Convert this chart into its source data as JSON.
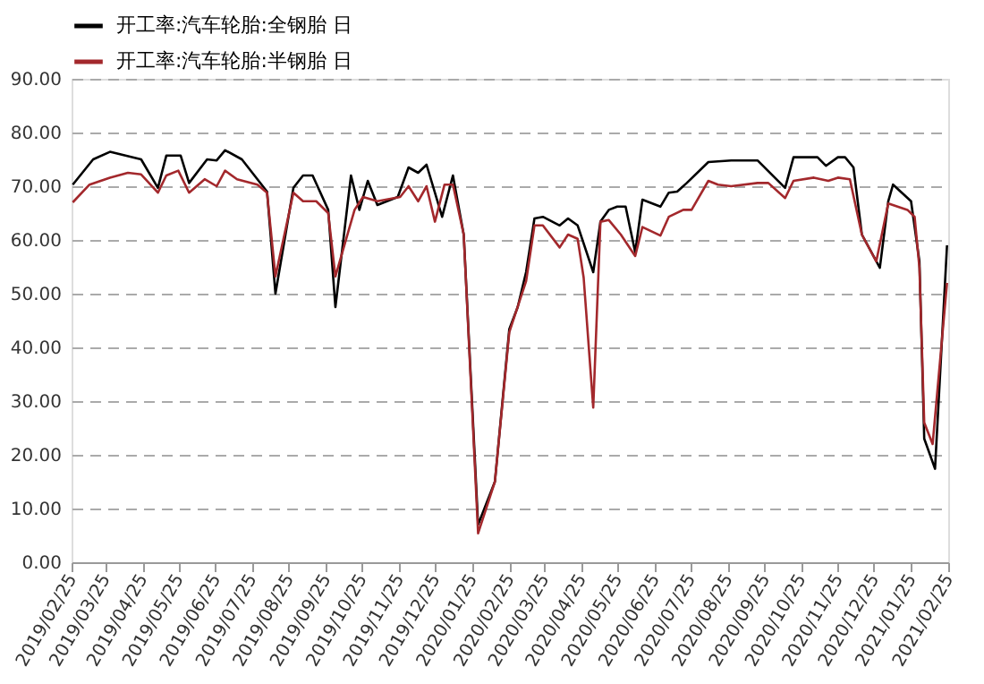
{
  "chart_data": {
    "type": "line",
    "legend": "top",
    "grid": "y",
    "line_style": "solid",
    "marker": "none",
    "xlim": [
      "2019-02-25",
      "2021-02-25"
    ],
    "xticks": [
      {
        "value": "2019-02-25",
        "label": "2019/02/25"
      },
      {
        "value": "2019-03-25",
        "label": "2019/03/25"
      },
      {
        "value": "2019-04-25",
        "label": "2019/04/25"
      },
      {
        "value": "2019-05-25",
        "label": "2019/05/25"
      },
      {
        "value": "2019-06-25",
        "label": "2019/06/25"
      },
      {
        "value": "2019-07-25",
        "label": "2019/07/25"
      },
      {
        "value": "2019-08-25",
        "label": "2019/08/25"
      },
      {
        "value": "2019-09-25",
        "label": "2019/09/25"
      },
      {
        "value": "2019-10-25",
        "label": "2019/10/25"
      },
      {
        "value": "2019-11-25",
        "label": "2019/11/25"
      },
      {
        "value": "2019-12-25",
        "label": "2019/12/25"
      },
      {
        "value": "2020-01-25",
        "label": "2020/01/25"
      },
      {
        "value": "2020-02-25",
        "label": "2020/02/25"
      },
      {
        "value": "2020-03-25",
        "label": "2020/03/25"
      },
      {
        "value": "2020-04-25",
        "label": "2020/04/25"
      },
      {
        "value": "2020-05-25",
        "label": "2020/05/25"
      },
      {
        "value": "2020-06-25",
        "label": "2020/06/25"
      },
      {
        "value": "2020-07-25",
        "label": "2020/07/25"
      },
      {
        "value": "2020-08-25",
        "label": "2020/08/25"
      },
      {
        "value": "2020-09-25",
        "label": "2020/09/25"
      },
      {
        "value": "2020-10-25",
        "label": "2020/10/25"
      },
      {
        "value": "2020-11-25",
        "label": "2020/11/25"
      },
      {
        "value": "2020-12-25",
        "label": "2020/12/25"
      },
      {
        "value": "2021-01-25",
        "label": "2021/01/25"
      },
      {
        "value": "2021-02-25",
        "label": "2021/02/25"
      }
    ],
    "ylim": [
      0,
      90
    ],
    "yticks": [
      {
        "value": 0,
        "label": "0.00"
      },
      {
        "value": 10,
        "label": "10.00"
      },
      {
        "value": 20,
        "label": "20.00"
      },
      {
        "value": 30,
        "label": "30.00"
      },
      {
        "value": 40,
        "label": "40.00"
      },
      {
        "value": 50,
        "label": "50.00"
      },
      {
        "value": 60,
        "label": "60.00"
      },
      {
        "value": 70,
        "label": "70.00"
      },
      {
        "value": 80,
        "label": "80.00"
      },
      {
        "value": 90,
        "label": "90.00"
      }
    ],
    "series": [
      {
        "name": "开工率:汽车轮胎:全钢胎 日",
        "color": "#000000",
        "x": [
          "2019-02-26",
          "2019-03-15",
          "2019-03-29",
          "2019-04-24",
          "2019-05-08",
          "2019-05-15",
          "2019-05-27",
          "2019-06-03",
          "2019-06-18",
          "2019-06-26",
          "2019-07-03",
          "2019-07-17",
          "2019-08-07",
          "2019-08-14",
          "2019-08-29",
          "2019-09-06",
          "2019-09-14",
          "2019-09-27",
          "2019-10-03",
          "2019-10-16",
          "2019-10-23",
          "2019-10-30",
          "2019-11-07",
          "2019-11-24",
          "2019-12-03",
          "2019-12-11",
          "2019-12-18",
          "2019-12-31",
          "2020-01-09",
          "2020-01-18",
          "2020-01-30",
          "2020-02-13",
          "2020-02-25",
          "2020-03-03",
          "2020-03-10",
          "2020-03-17",
          "2020-03-24",
          "2020-04-07",
          "2020-04-14",
          "2020-04-22",
          "2020-05-05",
          "2020-05-11",
          "2020-05-18",
          "2020-05-25",
          "2020-06-01",
          "2020-06-09",
          "2020-06-15",
          "2020-06-30",
          "2020-07-07",
          "2020-07-14",
          "2020-07-22",
          "2020-08-09",
          "2020-08-28",
          "2020-09-19",
          "2020-10-12",
          "2020-10-19",
          "2020-11-08",
          "2020-11-15",
          "2020-11-25",
          "2020-12-01",
          "2020-12-08",
          "2020-12-15",
          "2020-12-30",
          "2021-01-06",
          "2021-01-10",
          "2021-01-25",
          "2021-02-01",
          "2021-02-05",
          "2021-02-14",
          "2021-02-24"
        ],
        "values": [
          70.3,
          75,
          76.4,
          75,
          69.7,
          75.7,
          75.7,
          70.6,
          75,
          74.8,
          76.7,
          75,
          69,
          50,
          69.7,
          72,
          72,
          65.6,
          47.5,
          72,
          65.6,
          71,
          66.5,
          68,
          73.5,
          72.5,
          74,
          64.3,
          72,
          61,
          7,
          15,
          43.4,
          47.5,
          54,
          64,
          64.3,
          62.7,
          64,
          62.7,
          54,
          63.4,
          65.6,
          66.2,
          66.2,
          57.7,
          67.5,
          66.2,
          68.8,
          69,
          70.6,
          74.5,
          74.8,
          74.8,
          69.7,
          75.4,
          75.4,
          73.8,
          75.4,
          75.4,
          73.5,
          61,
          54.8,
          67.2,
          70.3,
          67.2,
          56,
          23,
          17.4,
          59
        ]
      },
      {
        "name": "开工率:汽车轮胎:半钢胎 日",
        "color": "#a3282c",
        "x": [
          "2019-02-26",
          "2019-03-12",
          "2019-03-29",
          "2019-04-13",
          "2019-04-24",
          "2019-05-08",
          "2019-05-15",
          "2019-05-25",
          "2019-06-03",
          "2019-06-16",
          "2019-06-26",
          "2019-07-03",
          "2019-07-13",
          "2019-07-30",
          "2019-08-07",
          "2019-08-14",
          "2019-08-29",
          "2019-09-06",
          "2019-09-17",
          "2019-09-27",
          "2019-10-03",
          "2019-10-12",
          "2019-10-19",
          "2019-10-26",
          "2019-11-07",
          "2019-11-26",
          "2019-12-03",
          "2019-12-11",
          "2019-12-18",
          "2019-12-25",
          "2020-01-02",
          "2020-01-09",
          "2020-01-18",
          "2020-01-30",
          "2020-02-13",
          "2020-02-25",
          "2020-03-10",
          "2020-03-17",
          "2020-03-24",
          "2020-04-07",
          "2020-04-14",
          "2020-04-22",
          "2020-04-27",
          "2020-05-05",
          "2020-05-11",
          "2020-05-18",
          "2020-05-28",
          "2020-06-09",
          "2020-06-15",
          "2020-06-30",
          "2020-07-07",
          "2020-07-19",
          "2020-07-26",
          "2020-08-09",
          "2020-08-17",
          "2020-08-28",
          "2020-09-19",
          "2020-09-28",
          "2020-10-12",
          "2020-10-19",
          "2020-11-05",
          "2020-11-17",
          "2020-11-25",
          "2020-12-05",
          "2020-12-15",
          "2020-12-27",
          "2021-01-06",
          "2021-01-22",
          "2021-01-28",
          "2021-02-01",
          "2021-02-05",
          "2021-02-12",
          "2021-02-24"
        ],
        "values": [
          67,
          70.3,
          71.6,
          72.5,
          72.2,
          68.8,
          72,
          72.9,
          68.8,
          71.3,
          70,
          72.9,
          71.3,
          70.3,
          68.8,
          53.2,
          68.8,
          67.2,
          67.2,
          65,
          53.2,
          60.2,
          65.6,
          68,
          67.2,
          68,
          70,
          67.2,
          70,
          63.4,
          70.3,
          70.3,
          61,
          5.4,
          15,
          42.8,
          52.3,
          62.7,
          62.7,
          58.6,
          61,
          60.2,
          53,
          28.8,
          63.4,
          63.7,
          61,
          57,
          62.4,
          60.8,
          64.3,
          65.6,
          65.6,
          71,
          70.3,
          70,
          70.6,
          70.6,
          67.8,
          71,
          71.6,
          71,
          71.6,
          71.3,
          61,
          56,
          66.8,
          65.6,
          64.3,
          54.8,
          26,
          22,
          52
        ]
      }
    ]
  }
}
